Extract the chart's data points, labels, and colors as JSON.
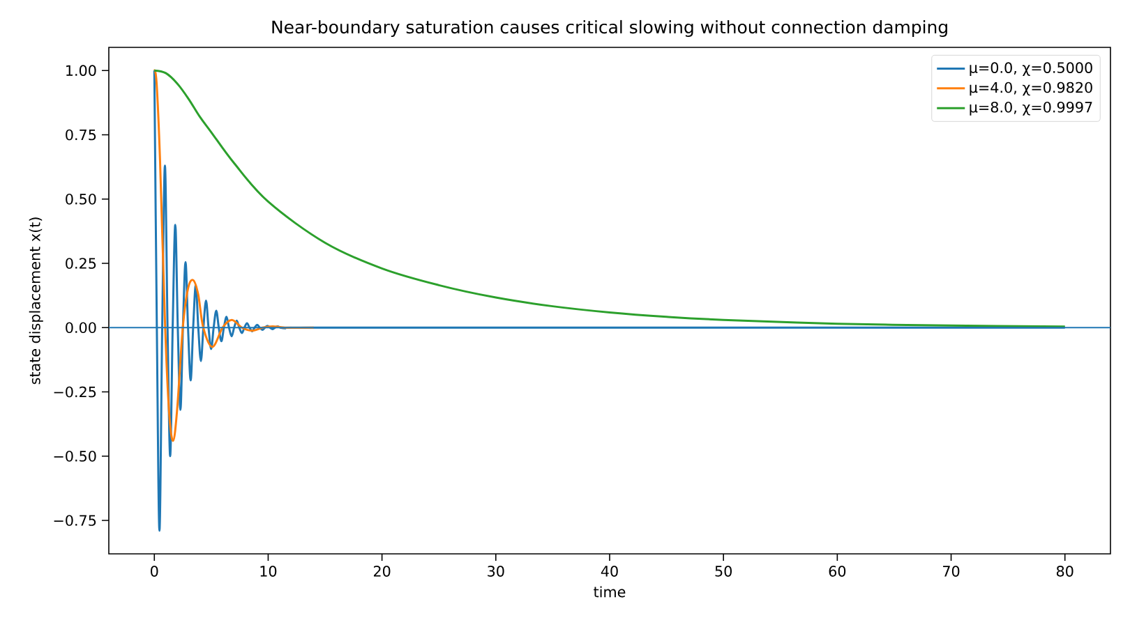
{
  "chart_data": {
    "type": "line",
    "title": "Near-boundary saturation causes critical slowing without connection damping",
    "xlabel": "time",
    "ylabel": "state displacement x(t)",
    "xlim": [
      -4,
      84
    ],
    "ylim": [
      -0.88,
      1.09
    ],
    "xticks": [
      0,
      10,
      20,
      30,
      40,
      50,
      60,
      70,
      80
    ],
    "yticks": [
      {
        "value": -0.75,
        "label": "−0.75"
      },
      {
        "value": -0.5,
        "label": "−0.50"
      },
      {
        "value": -0.25,
        "label": "−0.25"
      },
      {
        "value": 0,
        "label": "0.00"
      },
      {
        "value": 0.25,
        "label": "0.25"
      },
      {
        "value": 0.5,
        "label": "0.50"
      },
      {
        "value": 0.75,
        "label": "0.75"
      },
      {
        "value": 1,
        "label": "1.00"
      }
    ],
    "legend": "top right",
    "ref_lines": [
      {
        "axis": "y",
        "value": 0,
        "color": "#1f77b4"
      }
    ],
    "series": [
      {
        "name": "μ=0.0, χ=0.5000",
        "color": "#1f77b4",
        "x": [
          0,
          0.22,
          0.45,
          0.69,
          0.93,
          1.16,
          1.39,
          1.61,
          1.84,
          2.06,
          2.29,
          2.51,
          2.74,
          2.96,
          3.19,
          3.41,
          3.64,
          3.86,
          4.09,
          4.31,
          4.54,
          4.76,
          4.99,
          5.21,
          5.44,
          5.66,
          5.89,
          6.11,
          6.34,
          6.56,
          6.79,
          7.01,
          7.24,
          7.46,
          7.69,
          7.91,
          8.14,
          8.36,
          8.59,
          8.81,
          9.04,
          9.26,
          9.49,
          9.71,
          9.94,
          10.16,
          10.39,
          10.61,
          10.84,
          11.06,
          11.5,
          12,
          20,
          40,
          60,
          80
        ],
        "values": [
          1,
          0,
          -0.79,
          0,
          0.63,
          0,
          -0.5,
          0,
          0.4,
          0,
          -0.32,
          0,
          0.255,
          0,
          -0.205,
          0,
          0.165,
          0,
          -0.13,
          0,
          0.105,
          0,
          -0.083,
          0,
          0.066,
          0,
          -0.053,
          0,
          0.042,
          0,
          -0.034,
          0,
          0.027,
          0,
          -0.021,
          0,
          0.017,
          0,
          -0.014,
          0,
          0.011,
          0,
          -0.009,
          0,
          0.007,
          0,
          -0.006,
          0,
          0.005,
          0,
          -0.003,
          0,
          0,
          0,
          0,
          0
        ]
      },
      {
        "name": "μ=4.0, χ=0.9820",
        "color": "#ff7f0e",
        "x": [
          0,
          0.2,
          0.5,
          0.95,
          1.3,
          1.65,
          2.0,
          2.5,
          2.95,
          3.4,
          3.85,
          4.3,
          5.1,
          6.0,
          6.8,
          7.7,
          8.6,
          9.5,
          10.4,
          11.5,
          14
        ],
        "values": [
          1,
          0.95,
          0.65,
          0,
          -0.33,
          -0.44,
          -0.32,
          0,
          0.15,
          0.185,
          0.13,
          0,
          -0.075,
          0,
          0.03,
          0,
          -0.012,
          0,
          0.005,
          0,
          0
        ]
      },
      {
        "name": "μ=8.0, χ=0.9997",
        "color": "#2ca02c",
        "x": [
          0,
          1,
          2,
          3,
          4,
          5,
          7,
          10,
          15,
          20,
          25,
          30,
          35,
          40,
          45,
          50,
          60,
          70,
          80
        ],
        "values": [
          1,
          0.99,
          0.95,
          0.89,
          0.82,
          0.76,
          0.64,
          0.49,
          0.33,
          0.23,
          0.165,
          0.117,
          0.083,
          0.059,
          0.042,
          0.03,
          0.015,
          0.008,
          0.004
        ]
      }
    ]
  }
}
